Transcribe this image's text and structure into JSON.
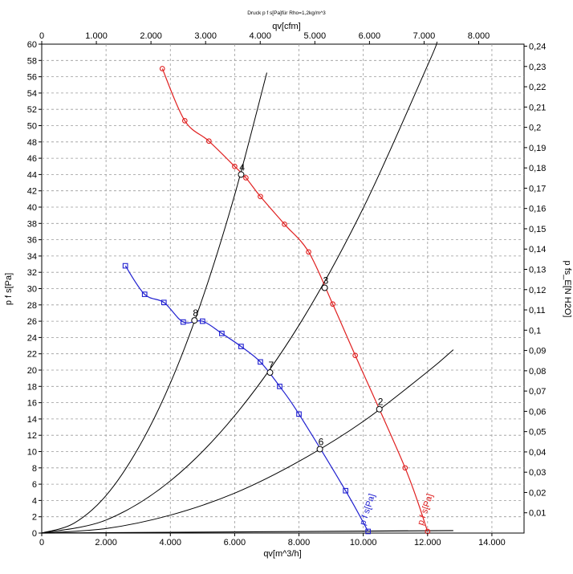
{
  "chart_data": {
    "type": "line",
    "title": "Druck p f s[Pa]für Rho=1,2kg/m^3",
    "xlabel": "qv[m^3/h]",
    "x2label": "qv[cfm]",
    "ylabel": "p f s[Pa]",
    "y2label": "p fs_E[N H2O]",
    "xlim": [
      0,
      15000
    ],
    "ylim": [
      0,
      60
    ],
    "x2lim": [
      0,
      8830
    ],
    "y2lim": [
      0,
      0.241
    ],
    "grid": true,
    "x_ticks": [
      "0",
      "2.000",
      "4.000",
      "6.000",
      "8.000",
      "10.000",
      "12.000",
      "14.000"
    ],
    "x_tick_values": [
      0,
      2000,
      4000,
      6000,
      8000,
      10000,
      12000,
      14000
    ],
    "x2_ticks": [
      "0",
      "1.000",
      "2.000",
      "3.000",
      "4.000",
      "5.000",
      "6.000",
      "7.000",
      "8.000"
    ],
    "x2_tick_values": [
      0,
      1000,
      2000,
      3000,
      4000,
      5000,
      6000,
      7000,
      8000
    ],
    "y_ticks": [
      "0",
      "2",
      "4",
      "6",
      "8",
      "10",
      "12",
      "14",
      "16",
      "18",
      "20",
      "22",
      "24",
      "26",
      "28",
      "30",
      "32",
      "34",
      "36",
      "38",
      "40",
      "42",
      "44",
      "46",
      "48",
      "50",
      "52",
      "54",
      "56",
      "58",
      "60"
    ],
    "y_tick_values": [
      0,
      2,
      4,
      6,
      8,
      10,
      12,
      14,
      16,
      18,
      20,
      22,
      24,
      26,
      28,
      30,
      32,
      34,
      36,
      38,
      40,
      42,
      44,
      46,
      48,
      50,
      52,
      54,
      56,
      58,
      60
    ],
    "y2_ticks": [
      "0,01",
      "0,02",
      "0,03",
      "0,04",
      "0,05",
      "0,06",
      "0,07",
      "0,08",
      "0,09",
      "0,1",
      "0,11",
      "0,12",
      "0,13",
      "0,14",
      "0,15",
      "0,16",
      "0,17",
      "0,18",
      "0,19",
      "0,2",
      "0,21",
      "0,22",
      "0,23",
      "0,24"
    ],
    "y2_tick_values": [
      0.01,
      0.02,
      0.03,
      0.04,
      0.05,
      0.06,
      0.07,
      0.08,
      0.09,
      0.1,
      0.11,
      0.12,
      0.13,
      0.14,
      0.15,
      0.16,
      0.17,
      0.18,
      0.19,
      0.2,
      0.21,
      0.22,
      0.23,
      0.24
    ],
    "series": [
      {
        "name": "p f s[Pa]",
        "color": "#e02020",
        "marker": "circle",
        "label_at": [
          12000,
          0.5
        ],
        "x": [
          3750,
          4450,
          5200,
          6000,
          6350,
          6800,
          7550,
          8300,
          9050,
          9750,
          11300,
          12000
        ],
        "y": [
          57.0,
          50.6,
          48.1,
          45.0,
          43.6,
          41.3,
          37.9,
          34.5,
          28.1,
          21.8,
          8.0,
          0.2
        ]
      },
      {
        "name": "p f s[Pa]",
        "color": "#2020d0",
        "marker": "square",
        "label_at": [
          10200,
          0.5
        ],
        "x": [
          2600,
          3200,
          3800,
          4400,
          5000,
          5600,
          6200,
          6800,
          7400,
          8000,
          9450,
          10150
        ],
        "y": [
          32.8,
          29.3,
          28.3,
          25.9,
          26.0,
          24.5,
          22.9,
          21.0,
          18.0,
          14.6,
          5.2,
          0.2
        ]
      }
    ],
    "system_curves": [
      {
        "x": [
          0,
          1000,
          2000,
          3000,
          4000,
          5000,
          6000,
          7000
        ],
        "y": [
          0,
          1.2,
          4.6,
          10.4,
          18.4,
          28.8,
          41.5,
          56.5
        ]
      },
      {
        "x": [
          0,
          2000,
          4000,
          6000,
          8000,
          10000,
          12000,
          12300
        ],
        "y": [
          0,
          1.6,
          6.4,
          14.4,
          25.5,
          39.9,
          57.4,
          60.3
        ]
      },
      {
        "x": [
          0,
          2000,
          4000,
          6000,
          8000,
          10000,
          12000,
          12800
        ],
        "y": [
          0,
          0.55,
          2.2,
          4.9,
          8.8,
          13.7,
          19.8,
          22.5
        ]
      }
    ],
    "base_line": {
      "x": [
        0,
        12800
      ],
      "y": [
        0,
        0.3
      ]
    },
    "operating_points": [
      {
        "label": "2",
        "x": 10500,
        "y": 15.2
      },
      {
        "label": "3",
        "x": 8800,
        "y": 30.1
      },
      {
        "label": "4",
        "x": 6200,
        "y": 44.0
      },
      {
        "label": "6",
        "x": 8650,
        "y": 10.3
      },
      {
        "label": "7",
        "x": 7100,
        "y": 19.7
      },
      {
        "label": "8",
        "x": 4750,
        "y": 26.1
      }
    ]
  }
}
